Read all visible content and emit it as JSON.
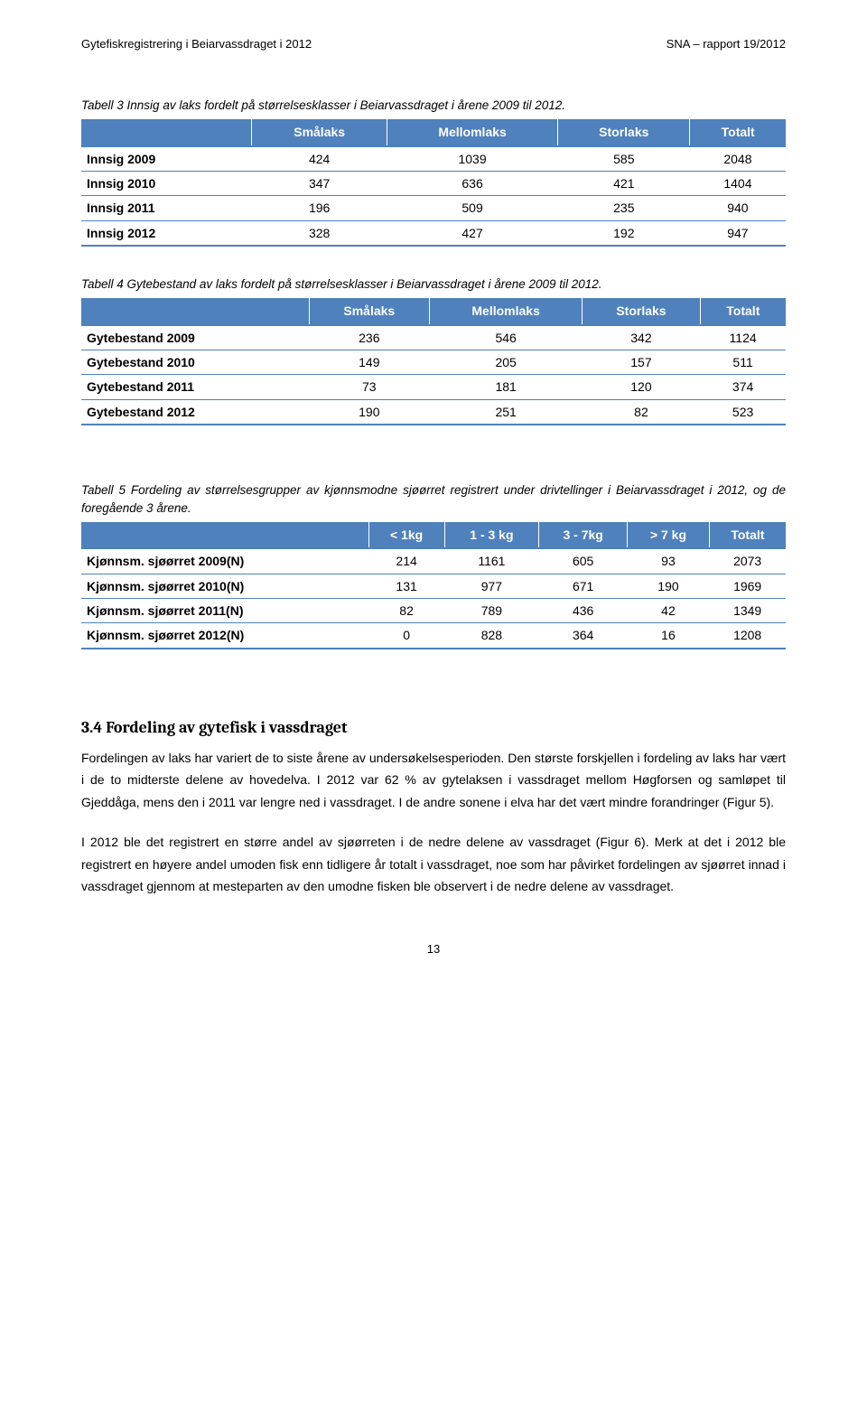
{
  "header": {
    "left": "Gytefiskregistrering i Beiarvassdraget i 2012",
    "right": "SNA – rapport 19/2012"
  },
  "table3": {
    "caption": "Tabell 3 Innsig av laks fordelt på størrelsesklasser i Beiarvassdraget i årene 2009 til 2012.",
    "headers": [
      "",
      "Smålaks",
      "Mellomlaks",
      "Storlaks",
      "Totalt"
    ],
    "rows": [
      {
        "label": "Innsig 2009",
        "v": [
          "424",
          "1039",
          "585",
          "2048"
        ]
      },
      {
        "label": "Innsig 2010",
        "v": [
          "347",
          "636",
          "421",
          "1404"
        ]
      },
      {
        "label": "Innsig 2011",
        "v": [
          "196",
          "509",
          "235",
          "940"
        ]
      },
      {
        "label": "Innsig 2012",
        "v": [
          "328",
          "427",
          "192",
          "947"
        ]
      }
    ]
  },
  "table4": {
    "caption": "Tabell 4 Gytebestand av laks fordelt på størrelsesklasser i Beiarvassdraget i årene 2009 til 2012.",
    "headers": [
      "",
      "Smålaks",
      "Mellomlaks",
      "Storlaks",
      "Totalt"
    ],
    "rows": [
      {
        "label": "Gytebestand 2009",
        "v": [
          "236",
          "546",
          "342",
          "1124"
        ]
      },
      {
        "label": "Gytebestand 2010",
        "v": [
          "149",
          "205",
          "157",
          "511"
        ]
      },
      {
        "label": "Gytebestand 2011",
        "v": [
          "73",
          "181",
          "120",
          "374"
        ]
      },
      {
        "label": "Gytebestand 2012",
        "v": [
          "190",
          "251",
          "82",
          "523"
        ]
      }
    ]
  },
  "table5": {
    "caption": "Tabell 5 Fordeling av størrelsesgrupper av kjønnsmodne sjøørret registrert under drivtellinger i Beiarvassdraget i 2012, og de foregående 3 årene.",
    "headers": [
      "",
      "< 1kg",
      "1 - 3 kg",
      "3 - 7kg",
      "> 7 kg",
      "Totalt"
    ],
    "rows": [
      {
        "label": "Kjønnsm. sjøørret 2009(N)",
        "v": [
          "214",
          "1161",
          "605",
          "93",
          "2073"
        ]
      },
      {
        "label": "Kjønnsm. sjøørret 2010(N)",
        "v": [
          "131",
          "977",
          "671",
          "190",
          "1969"
        ]
      },
      {
        "label": "Kjønnsm. sjøørret 2011(N)",
        "v": [
          "82",
          "789",
          "436",
          "42",
          "1349"
        ]
      },
      {
        "label": "Kjønnsm. sjøørret 2012(N)",
        "v": [
          "0",
          "828",
          "364",
          "16",
          "1208"
        ]
      }
    ]
  },
  "section": {
    "heading": "3.4 Fordeling av gytefisk i vassdraget",
    "para1": "Fordelingen av laks har variert de to siste årene av undersøkelsesperioden. Den største forskjellen i fordeling av laks har vært i de to midterste delene av hovedelva. I 2012 var 62 % av gytelaksen i vassdraget mellom Høgforsen og samløpet til Gjeddåga, mens den i 2011 var lengre ned i vassdraget. I de andre sonene i elva har det vært mindre forandringer (Figur 5).",
    "para2": "I 2012 ble det registrert en større andel av sjøørreten i de nedre delene av vassdraget (Figur 6). Merk at det i 2012 ble registrert en høyere andel umoden fisk enn tidligere år totalt i vassdraget, noe som har påvirket fordelingen av sjøørret innad i vassdraget gjennom at mesteparten av den umodne fisken ble observert i de nedre delene av vassdraget."
  },
  "pageNumber": "13",
  "style": {
    "header_bg": "#4f81bd",
    "header_fg": "#ffffff",
    "border_color": "#4f81bd",
    "body_bg": "#ffffff",
    "text_color": "#000000"
  }
}
